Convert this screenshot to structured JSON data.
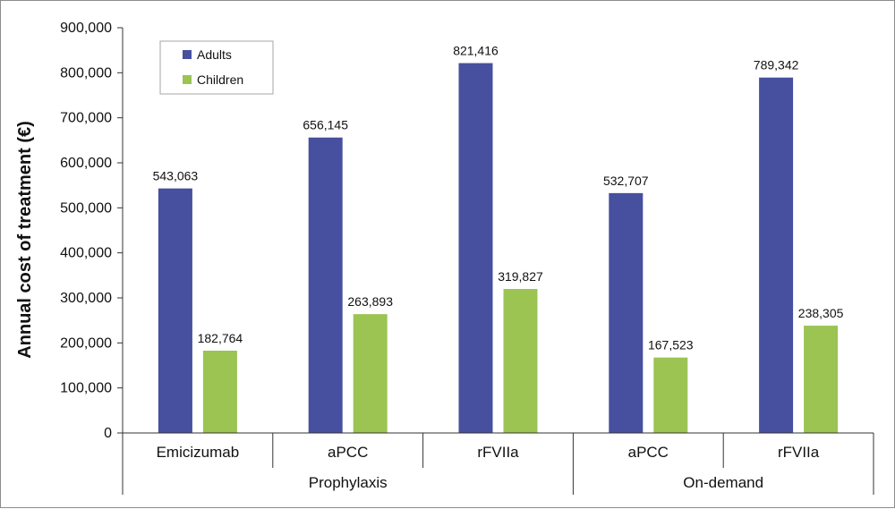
{
  "chart_data": {
    "type": "bar",
    "title": "",
    "xlabel": "",
    "ylabel": "Annual cost of treatment (€)",
    "ylim": [
      0,
      900000
    ],
    "yticks": [
      0,
      100000,
      200000,
      300000,
      400000,
      500000,
      600000,
      700000,
      800000,
      900000
    ],
    "ytick_labels": [
      "0",
      "100,000",
      "200,000",
      "300,000",
      "400,000",
      "500,000",
      "600,000",
      "700,000",
      "800,000",
      "900,000"
    ],
    "categories": [
      "Emicizumab",
      "aPCC",
      "rFVIIa",
      "aPCC",
      "rFVIIa"
    ],
    "groups": [
      {
        "label": "Prophylaxis",
        "count": 3
      },
      {
        "label": "On-demand",
        "count": 2
      }
    ],
    "series": [
      {
        "name": "Adults",
        "color": "#474f9f",
        "values": [
          543063,
          656145,
          821416,
          532707,
          789342
        ],
        "labels": [
          "543,063",
          "656,145",
          "821,416",
          "532,707",
          "789,342"
        ]
      },
      {
        "name": "Children",
        "color": "#9bc453",
        "values": [
          182764,
          263893,
          319827,
          167523,
          238305
        ],
        "labels": [
          "182,764",
          "263,893",
          "319,827",
          "167,523",
          "238,305"
        ]
      }
    ],
    "legend": "top-left",
    "grid": false
  }
}
